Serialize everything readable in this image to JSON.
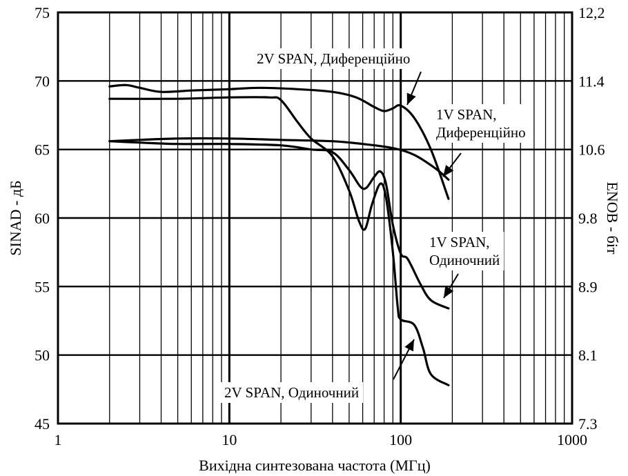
{
  "chart_data": {
    "type": "line",
    "title": "",
    "xlabel": "Вихідна синтезована частота (МГц)",
    "ylabel": "SINAD - дБ",
    "y2label": "ENOB - біт",
    "x_scale": "log",
    "xlim": [
      1,
      1000
    ],
    "ylim": [
      45,
      75
    ],
    "grid": true,
    "x_ticks": [
      "1",
      "10",
      "100",
      "1000"
    ],
    "y_ticks": [
      "45",
      "50",
      "55",
      "60",
      "65",
      "70",
      "75"
    ],
    "y2_ticks": [
      "7.3",
      "8.1",
      "8.9",
      "9.8",
      "10.6",
      "11.4",
      "12,2"
    ],
    "series": [
      {
        "name": "2V SPAN, Диференційно",
        "points": [
          [
            2,
            69.6
          ],
          [
            2.5,
            69.7
          ],
          [
            3,
            69.5
          ],
          [
            4,
            69.2
          ],
          [
            6,
            69.3
          ],
          [
            10,
            69.4
          ],
          [
            15,
            69.5
          ],
          [
            25,
            69.4
          ],
          [
            40,
            69.2
          ],
          [
            55,
            68.8
          ],
          [
            70,
            68.1
          ],
          [
            80,
            67.8
          ],
          [
            90,
            68.0
          ],
          [
            100,
            68.2
          ],
          [
            120,
            67.3
          ],
          [
            150,
            65.0
          ],
          [
            190,
            61.4
          ]
        ]
      },
      {
        "name": "1V SPAN, Диференційно",
        "points": [
          [
            2,
            65.6
          ],
          [
            3,
            65.7
          ],
          [
            5,
            65.8
          ],
          [
            10,
            65.8
          ],
          [
            20,
            65.7
          ],
          [
            40,
            65.6
          ],
          [
            60,
            65.4
          ],
          [
            90,
            65.1
          ],
          [
            120,
            64.6
          ],
          [
            160,
            63.6
          ],
          [
            190,
            62.8
          ]
        ]
      },
      {
        "name": "1V SPAN, Одиночний",
        "points": [
          [
            2,
            65.6
          ],
          [
            3,
            65.5
          ],
          [
            5,
            65.4
          ],
          [
            10,
            65.4
          ],
          [
            20,
            65.3
          ],
          [
            30,
            65.0
          ],
          [
            40,
            64.8
          ],
          [
            50,
            63.5
          ],
          [
            58,
            62.3
          ],
          [
            63,
            62.2
          ],
          [
            70,
            63.0
          ],
          [
            76,
            63.4
          ],
          [
            82,
            62.5
          ],
          [
            90,
            59.5
          ],
          [
            100,
            57.4
          ],
          [
            110,
            57.0
          ],
          [
            130,
            55.2
          ],
          [
            150,
            54.0
          ],
          [
            190,
            53.4
          ]
        ]
      },
      {
        "name": "2V SPAN, Одиночний",
        "points": [
          [
            2,
            68.7
          ],
          [
            5,
            68.7
          ],
          [
            10,
            68.8
          ],
          [
            17,
            68.8
          ],
          [
            20,
            68.6
          ],
          [
            25,
            67.0
          ],
          [
            30,
            65.8
          ],
          [
            40,
            64.5
          ],
          [
            50,
            62.0
          ],
          [
            57,
            59.8
          ],
          [
            62,
            59.2
          ],
          [
            68,
            61.0
          ],
          [
            76,
            62.5
          ],
          [
            82,
            61.5
          ],
          [
            90,
            57.5
          ],
          [
            96,
            53.5
          ],
          [
            100,
            52.6
          ],
          [
            120,
            52.2
          ],
          [
            135,
            50.5
          ],
          [
            150,
            48.6
          ],
          [
            190,
            47.8
          ]
        ]
      }
    ],
    "annotations": [
      {
        "text": "2V SPAN, Диференційно",
        "lines": [
          "2V SPAN, Диференційно"
        ]
      },
      {
        "text": "1V SPAN, Диференційно",
        "lines": [
          "1V SPAN,",
          "Диференційно"
        ]
      },
      {
        "text": "1V SPAN, Одиночний",
        "lines": [
          "1V SPAN,",
          "Одиночний"
        ]
      },
      {
        "text": "2V SPAN, Одиночний",
        "lines": [
          "2V SPAN, Одиночний"
        ]
      }
    ]
  }
}
